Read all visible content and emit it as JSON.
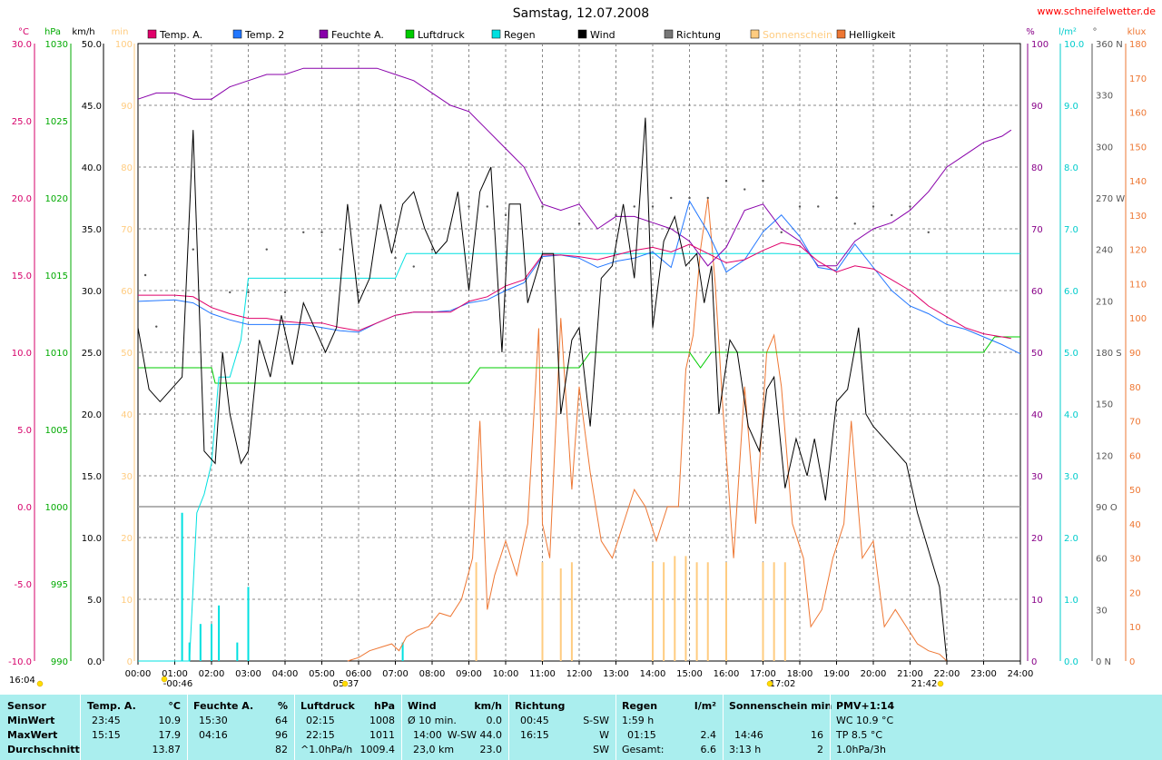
{
  "header": {
    "title": "Samstag, 12.07.2008",
    "site": "www.schneifelwetter.de"
  },
  "legend": [
    {
      "label": "Temp. A.",
      "color": "#e0006a"
    },
    {
      "label": "Temp. 2",
      "color": "#2277ff"
    },
    {
      "label": "Feuchte A.",
      "color": "#8800aa"
    },
    {
      "label": "Luftdruck",
      "color": "#00cc00"
    },
    {
      "label": "Regen",
      "color": "#00e0e0"
    },
    {
      "label": "Wind",
      "color": "#000000"
    },
    {
      "label": "Richtung",
      "color": "#777777"
    },
    {
      "label": "Sonnenschein",
      "color": "#ffcc80"
    },
    {
      "label": "Helligkeit",
      "color": "#ee7733"
    }
  ],
  "axes": {
    "units_left": [
      "°C",
      "hPa",
      "km/h",
      "min"
    ],
    "units_right": [
      "%",
      "l/m²",
      "°",
      "klux"
    ],
    "temp_ticks": [
      "30.0",
      "25.0",
      "20.0",
      "15.0",
      "10.0",
      "5.0",
      "0.0",
      "-5.0",
      "-10.0"
    ],
    "hpa_ticks": [
      "1030",
      "1025",
      "1020",
      "1015",
      "1010",
      "1005",
      "1000",
      "995",
      "990"
    ],
    "kmh_ticks": [
      "50.0",
      "45.0",
      "40.0",
      "35.0",
      "30.0",
      "25.0",
      "20.0",
      "15.0",
      "10.0",
      "5.0",
      "0.0"
    ],
    "min_ticks": [
      "100",
      "90",
      "80",
      "70",
      "60",
      "50",
      "40",
      "30",
      "20",
      "10",
      "0"
    ],
    "pct_ticks": [
      "100",
      "90",
      "80",
      "70",
      "60",
      "50",
      "40",
      "30",
      "20",
      "10",
      "0"
    ],
    "rain_ticks": [
      "10.0",
      "9.0",
      "8.0",
      "7.0",
      "6.0",
      "5.0",
      "4.0",
      "3.0",
      "2.0",
      "1.0",
      "0.0"
    ],
    "dir_ticks": [
      "360 N",
      "330",
      "300",
      "270 W",
      "240",
      "210",
      "180 S",
      "150",
      "120",
      "90 O",
      "60",
      "30",
      "0 N"
    ],
    "klux_ticks": [
      "180",
      "170",
      "160",
      "150",
      "140",
      "130",
      "120",
      "110",
      "100",
      "90",
      "80",
      "70",
      "60",
      "50",
      "40",
      "30",
      "20",
      "10",
      "0"
    ],
    "time_ticks": [
      "00:00",
      "01:00",
      "02:00",
      "03:00",
      "04:00",
      "05:00",
      "06:00",
      "07:00",
      "08:00",
      "09:00",
      "10:00",
      "11:00",
      "12:00",
      "13:00",
      "14:00",
      "15:00",
      "16:00",
      "17:00",
      "18:00",
      "19:00",
      "20:00",
      "21:00",
      "22:00",
      "23:00",
      "24:00"
    ],
    "sun_labels": [
      "16:04",
      "-00:46",
      "05:37",
      "17:02",
      "21:42"
    ]
  },
  "chart_data": {
    "type": "line",
    "title": "Samstag, 12.07.2008",
    "x_unit": "hours",
    "xlim": [
      0,
      24
    ],
    "series": [
      {
        "name": "Temp. A.",
        "unit": "°C",
        "ylim": [
          -10,
          30
        ],
        "color": "#e0006a",
        "x": [
          0,
          1,
          1.5,
          2,
          2.5,
          3,
          3.5,
          4,
          4.5,
          5,
          5.5,
          6,
          6.5,
          7,
          7.5,
          8,
          8.5,
          9,
          9.5,
          10,
          10.5,
          11,
          11.5,
          12,
          12.5,
          13,
          13.5,
          14,
          14.5,
          15,
          15.5,
          16,
          16.5,
          17,
          17.5,
          18,
          18.5,
          19,
          19.5,
          20,
          20.5,
          21,
          21.5,
          22,
          22.5,
          23,
          23.5,
          23.75
        ],
        "y": [
          13.7,
          13.7,
          13.6,
          12.9,
          12.5,
          12.2,
          12.2,
          12.0,
          11.9,
          11.9,
          11.6,
          11.4,
          11.9,
          12.4,
          12.6,
          12.6,
          12.6,
          13.3,
          13.6,
          14.3,
          14.7,
          16.3,
          16.3,
          16.2,
          16.0,
          16.3,
          16.6,
          16.8,
          16.5,
          17.0,
          16.4,
          15.8,
          16.0,
          16.6,
          17.1,
          16.9,
          15.9,
          15.2,
          15.6,
          15.4,
          14.7,
          14.0,
          13.0,
          12.3,
          11.6,
          11.2,
          11.0,
          10.9
        ]
      },
      {
        "name": "Temp. 2",
        "unit": "°C",
        "ylim": [
          -10,
          30
        ],
        "color": "#2277ff",
        "x": [
          0,
          1,
          1.5,
          2,
          2.5,
          3,
          3.5,
          4,
          4.5,
          5,
          5.5,
          6,
          6.5,
          7,
          7.5,
          8,
          8.5,
          9,
          9.5,
          10,
          10.5,
          11,
          11.5,
          12,
          12.5,
          13,
          13.5,
          14,
          14.5,
          15,
          15.5,
          16,
          16.5,
          17,
          17.5,
          18,
          18.5,
          19,
          19.5,
          20,
          20.5,
          21,
          21.5,
          22,
          22.5,
          23,
          23.5,
          24
        ],
        "y": [
          13.3,
          13.4,
          13.2,
          12.5,
          12.1,
          11.8,
          11.8,
          11.8,
          11.8,
          11.6,
          11.4,
          11.3,
          11.9,
          12.4,
          12.6,
          12.6,
          12.7,
          13.2,
          13.4,
          14.0,
          14.5,
          16.2,
          16.3,
          16.1,
          15.5,
          15.9,
          16.1,
          16.5,
          15.5,
          19.8,
          17.8,
          15.2,
          16.0,
          17.8,
          18.9,
          17.5,
          15.5,
          15.3,
          17.0,
          15.5,
          14.0,
          13.0,
          12.5,
          11.8,
          11.5,
          11.0,
          10.5,
          9.9
        ]
      },
      {
        "name": "Feuchte A.",
        "unit": "%",
        "ylim": [
          0,
          100
        ],
        "color": "#8800aa",
        "x": [
          0,
          0.5,
          1,
          1.5,
          2,
          2.5,
          3,
          3.5,
          4,
          4.5,
          5,
          5.5,
          6,
          6.5,
          7,
          7.5,
          8,
          8.5,
          9,
          9.5,
          10,
          10.5,
          11,
          11.5,
          12,
          12.5,
          13,
          13.5,
          14,
          14.5,
          15,
          15.5,
          16,
          16.5,
          17,
          17.5,
          18,
          18.5,
          19,
          19.5,
          20,
          20.5,
          21,
          21.5,
          22,
          22.5,
          23,
          23.5,
          23.75
        ],
        "y": [
          91,
          92,
          92,
          91,
          91,
          93,
          94,
          95,
          95,
          96,
          96,
          96,
          96,
          96,
          95,
          94,
          92,
          90,
          89,
          86,
          83,
          80,
          74,
          73,
          74,
          70,
          72,
          72,
          71,
          70,
          68,
          64,
          67,
          73,
          74,
          70,
          68,
          64,
          64,
          68,
          70,
          71,
          73,
          76,
          80,
          82,
          84,
          85,
          86
        ]
      },
      {
        "name": "Luftdruck",
        "unit": "hPa",
        "ylim": [
          990,
          1030
        ],
        "color": "#00cc00",
        "x": [
          0,
          2,
          2.1,
          9,
          9.3,
          12,
          12.3,
          15,
          15.3,
          15.6,
          23,
          23.3,
          24
        ],
        "y": [
          1009,
          1009,
          1008,
          1008,
          1009,
          1009,
          1010,
          1010,
          1009,
          1010,
          1010,
          1011,
          1011
        ]
      },
      {
        "name": "Regen",
        "unit": "l/m²",
        "ylim": [
          0,
          10
        ],
        "color": "#00e0e0",
        "x": [
          0,
          1.2,
          1.4,
          1.6,
          1.8,
          2,
          2.2,
          2.5,
          2.8,
          3,
          5.5,
          6,
          6.5,
          7,
          7.3,
          16,
          24
        ],
        "y": [
          0,
          0,
          0,
          2.4,
          2.7,
          3.2,
          4.6,
          4.6,
          5.2,
          6.2,
          6.2,
          6.2,
          6.2,
          6.2,
          6.6,
          6.6,
          6.6
        ]
      },
      {
        "name": "Wind",
        "unit": "km/h",
        "ylim": [
          0,
          50
        ],
        "color": "#000000",
        "x": [
          0,
          0.3,
          0.6,
          0.9,
          1.2,
          1.5,
          1.8,
          2.1,
          2.3,
          2.5,
          2.8,
          3,
          3.3,
          3.6,
          3.9,
          4.2,
          4.5,
          4.8,
          5.1,
          5.4,
          5.7,
          6,
          6.3,
          6.6,
          6.9,
          7.2,
          7.5,
          7.8,
          8.1,
          8.4,
          8.7,
          9,
          9.3,
          9.6,
          9.9,
          10.1,
          10.4,
          10.6,
          10.8,
          11,
          11.3,
          11.5,
          11.8,
          12,
          12.3,
          12.6,
          12.9,
          13.2,
          13.5,
          13.8,
          14,
          14.3,
          14.6,
          14.9,
          15.2,
          15.4,
          15.6,
          15.8,
          16.1,
          16.3,
          16.6,
          16.9,
          17.1,
          17.3,
          17.6,
          17.9,
          18.2,
          18.4,
          18.7,
          19,
          19.3,
          19.6,
          19.8,
          20,
          20.3,
          20.6,
          20.9,
          21.2,
          21.5,
          21.8,
          22
        ],
        "y": [
          27,
          22,
          21,
          22,
          23,
          43,
          17,
          16,
          25,
          20,
          16,
          17,
          26,
          23,
          28,
          24,
          29,
          27,
          25,
          27,
          37,
          29,
          31,
          37,
          33,
          37,
          38,
          35,
          33,
          34,
          38,
          30,
          38,
          40,
          25,
          37,
          37,
          29,
          31,
          33,
          33,
          20,
          26,
          27,
          19,
          31,
          32,
          37,
          31,
          44,
          27,
          34,
          36,
          32,
          33,
          29,
          32,
          20,
          26,
          25,
          19,
          17,
          22,
          23,
          14,
          18,
          15,
          18,
          13,
          21,
          22,
          27,
          20,
          19,
          18,
          17,
          16,
          12,
          9,
          6,
          0
        ]
      },
      {
        "name": "Richtung",
        "unit": "°",
        "ylim": [
          0,
          360
        ],
        "color": "#555555",
        "x": [
          0.2,
          0.5,
          1.5,
          2.5,
          3,
          3.5,
          4,
          4.5,
          5,
          5.5,
          6,
          7,
          7.5,
          8,
          9,
          9.5,
          10,
          11,
          12,
          13,
          13.5,
          14,
          14.5,
          15,
          15.5,
          16,
          16.5,
          17,
          17.5,
          18,
          18.5,
          19,
          19.5,
          20,
          20.5,
          21,
          21.5
        ],
        "y": [
          225,
          195,
          240,
          215,
          215,
          240,
          215,
          250,
          250,
          240,
          215,
          235,
          230,
          240,
          265,
          265,
          260,
          265,
          255,
          260,
          265,
          265,
          270,
          270,
          270,
          280,
          275,
          280,
          250,
          265,
          265,
          270,
          255,
          265,
          260,
          265,
          250
        ]
      },
      {
        "name": "Sonnenschein",
        "unit": "min",
        "ylim": [
          0,
          100
        ],
        "color": "#ffcc80",
        "x": [
          9.2,
          11,
          11.5,
          11.8,
          14,
          14.3,
          14.6,
          14.9,
          15.2,
          15.5,
          16,
          17,
          17.3,
          17.6
        ],
        "y": [
          16,
          16,
          15,
          16,
          16,
          16,
          17,
          17,
          16,
          16,
          16,
          16,
          16,
          16
        ]
      },
      {
        "name": "Helligkeit",
        "unit": "klux",
        "ylim": [
          0,
          180
        ],
        "color": "#ee7733",
        "x": [
          5.7,
          6,
          6.3,
          6.6,
          6.9,
          7.1,
          7.3,
          7.6,
          7.9,
          8.2,
          8.5,
          8.8,
          9.1,
          9.3,
          9.5,
          9.7,
          10,
          10.3,
          10.6,
          10.9,
          11,
          11.2,
          11.5,
          11.8,
          12,
          12.3,
          12.6,
          12.9,
          13.2,
          13.5,
          13.8,
          14.1,
          14.4,
          14.7,
          14.9,
          15.1,
          15.3,
          15.5,
          15.7,
          15.9,
          16.2,
          16.5,
          16.8,
          17.1,
          17.3,
          17.5,
          17.8,
          18.1,
          18.3,
          18.6,
          18.9,
          19.2,
          19.4,
          19.7,
          20,
          20.3,
          20.6,
          20.9,
          21.2,
          21.5,
          21.8,
          22
        ],
        "y": [
          0,
          1,
          3,
          4,
          5,
          3,
          7,
          9,
          10,
          14,
          13,
          18,
          30,
          70,
          15,
          25,
          35,
          25,
          40,
          97,
          40,
          30,
          100,
          50,
          80,
          55,
          35,
          30,
          40,
          50,
          45,
          35,
          45,
          45,
          85,
          95,
          120,
          135,
          110,
          75,
          30,
          80,
          40,
          90,
          95,
          80,
          40,
          30,
          10,
          15,
          30,
          40,
          70,
          30,
          35,
          10,
          15,
          10,
          5,
          3,
          2,
          0
        ]
      }
    ]
  },
  "stats": {
    "col1": {
      "title": "Sensor",
      "rows": [
        "MinWert",
        "MaxWert",
        "Durchschnitt"
      ]
    },
    "temp": {
      "title": "Temp. A.",
      "unit": "°C",
      "rows": [
        {
          "time": "23:45",
          "value": "10.9"
        },
        {
          "time": "15:15",
          "value": "17.9"
        },
        {
          "time": "",
          "value": "13.87"
        }
      ]
    },
    "humid": {
      "title": "Feuchte A.",
      "unit": "%",
      "rows": [
        {
          "time": "15:30",
          "value": "64"
        },
        {
          "time": "04:16",
          "value": "96"
        },
        {
          "time": "",
          "value": "82"
        }
      ]
    },
    "press": {
      "title": "Luftdruck",
      "unit": "hPa",
      "rows": [
        {
          "time": "02:15",
          "value": "1008"
        },
        {
          "time": "22:15",
          "value": "1011"
        },
        {
          "time": "^1.0hPa/h",
          "value": "1009.4"
        }
      ]
    },
    "wind": {
      "title": "Wind",
      "unit": "km/h",
      "rows": [
        {
          "time": "Ø 10 min.",
          "value": "0.0"
        },
        {
          "time": "14:00",
          "value": "W-SW 44.0"
        },
        {
          "time": "23,0 km",
          "value": "23.0"
        }
      ]
    },
    "dir": {
      "title": "Richtung",
      "rows": [
        {
          "time": "00:45",
          "value": "S-SW"
        },
        {
          "time": "16:15",
          "value": "W"
        },
        {
          "time": "",
          "value": "SW"
        }
      ]
    },
    "rain": {
      "title": "Regen",
      "unit": "l/m²",
      "rows": [
        {
          "time": "1:59 h",
          "value": ""
        },
        {
          "time": "01:15",
          "value": "2.4"
        },
        {
          "time": "Gesamt:",
          "value": "6.6"
        }
      ]
    },
    "sun": {
      "title": "Sonnenschein min",
      "rows": [
        {
          "time": "",
          "value": ""
        },
        {
          "time": "14:46",
          "value": "16"
        },
        {
          "time": "3:13 h",
          "value": "2"
        }
      ]
    },
    "pmv": {
      "title": "PMV+1:14",
      "rows": [
        "WC 10.9 °C",
        "TP 8.5 °C",
        "1.0hPa/3h"
      ]
    }
  }
}
